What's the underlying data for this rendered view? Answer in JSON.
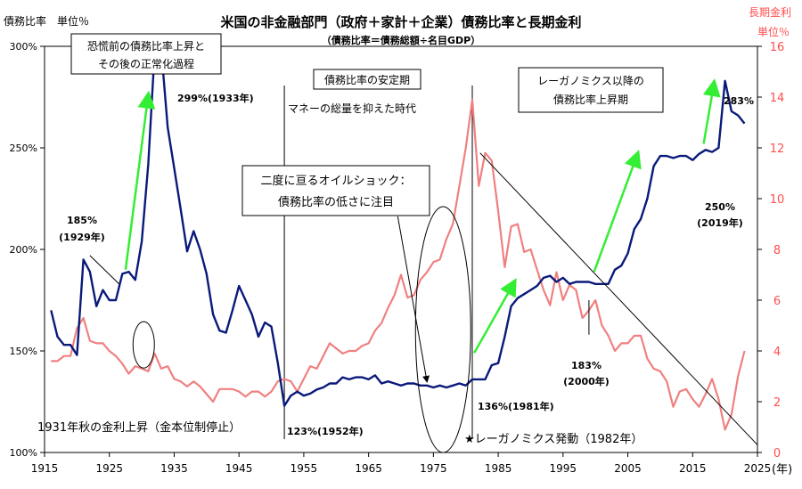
{
  "chart_data": {
    "type": "line",
    "title": "米国の非金融部門（政府＋家計＋企業）債務比率と長期金利",
    "subtitle": "（債務比率＝債務総額÷名目GDP）",
    "y_left_label": "債務比率　単位％",
    "y_right_label_1": "長期金利",
    "y_right_label_2": "単位％",
    "x_unit": "(年)",
    "xlim": [
      1915,
      2025
    ],
    "ylim_left": [
      100,
      300
    ],
    "ylim_right": [
      0,
      16
    ],
    "x_ticks": [
      "1915",
      "1925",
      "1935",
      "1945",
      "1955",
      "1965",
      "1975",
      "1985",
      "1995",
      "2005",
      "2015",
      "2025"
    ],
    "y_left_ticks": [
      "100%",
      "150%",
      "200%",
      "250%",
      "300%"
    ],
    "y_right_ticks": [
      "0",
      "2",
      "4",
      "6",
      "8",
      "10",
      "12",
      "14",
      "16"
    ],
    "grid": false,
    "series": [
      {
        "key": "debt",
        "color": "#0a1a7a",
        "axis": "left",
        "x": [
          1916,
          1917,
          1918,
          1919,
          1920,
          1921,
          1922,
          1923,
          1924,
          1925,
          1926,
          1927,
          1928,
          1929,
          1930,
          1931,
          1932,
          1933,
          1934,
          1935,
          1936,
          1937,
          1938,
          1939,
          1940,
          1941,
          1942,
          1943,
          1944,
          1945,
          1946,
          1947,
          1948,
          1949,
          1950,
          1951,
          1952,
          1953,
          1954,
          1955,
          1956,
          1957,
          1958,
          1959,
          1960,
          1961,
          1962,
          1963,
          1964,
          1965,
          1966,
          1967,
          1968,
          1969,
          1970,
          1971,
          1972,
          1973,
          1974,
          1975,
          1976,
          1977,
          1978,
          1979,
          1980,
          1981,
          1982,
          1983,
          1984,
          1985,
          1986,
          1987,
          1988,
          1989,
          1990,
          1991,
          1992,
          1993,
          1994,
          1995,
          1996,
          1997,
          1998,
          1999,
          2000,
          2001,
          2002,
          2003,
          2004,
          2005,
          2006,
          2007,
          2008,
          2009,
          2010,
          2011,
          2012,
          2013,
          2014,
          2015,
          2016,
          2017,
          2018,
          2019,
          2020,
          2021,
          2022,
          2023
        ],
        "y": [
          170,
          157,
          153,
          153,
          148,
          195,
          189,
          172,
          180,
          175,
          175,
          188,
          189,
          185,
          204,
          242,
          298,
          299,
          260,
          240,
          220,
          199,
          209,
          200,
          188,
          168,
          160,
          159,
          170,
          182,
          175,
          168,
          157,
          164,
          162,
          144,
          123,
          128,
          130,
          128,
          129,
          131,
          132,
          134,
          134,
          137,
          136,
          137,
          137,
          136,
          138,
          134,
          135,
          134,
          133,
          134,
          134,
          133,
          133,
          132,
          133,
          132,
          133,
          134,
          133,
          136,
          136,
          136,
          143,
          144,
          157,
          172,
          176,
          178,
          180,
          182,
          186,
          187,
          184,
          186,
          183,
          184,
          184,
          184,
          183,
          183,
          183,
          190,
          192,
          198,
          210,
          215,
          225,
          241,
          246,
          246,
          245,
          246,
          246,
          244,
          247,
          249,
          248,
          250,
          283,
          268,
          266,
          262
        ]
      },
      {
        "key": "rate",
        "color": "#f08080",
        "axis": "right",
        "x": [
          1916,
          1917,
          1918,
          1919,
          1920,
          1921,
          1922,
          1923,
          1924,
          1925,
          1926,
          1927,
          1928,
          1929,
          1930,
          1931,
          1932,
          1933,
          1934,
          1935,
          1936,
          1937,
          1938,
          1939,
          1940,
          1941,
          1942,
          1943,
          1944,
          1945,
          1946,
          1947,
          1948,
          1949,
          1950,
          1951,
          1952,
          1953,
          1954,
          1955,
          1956,
          1957,
          1958,
          1959,
          1960,
          1961,
          1962,
          1963,
          1964,
          1965,
          1966,
          1967,
          1968,
          1969,
          1970,
          1971,
          1972,
          1973,
          1974,
          1975,
          1976,
          1977,
          1978,
          1979,
          1980,
          1981,
          1982,
          1983,
          1984,
          1985,
          1986,
          1987,
          1988,
          1989,
          1990,
          1991,
          1992,
          1993,
          1994,
          1995,
          1996,
          1997,
          1998,
          1999,
          2000,
          2001,
          2002,
          2003,
          2004,
          2005,
          2006,
          2007,
          2008,
          2009,
          2010,
          2011,
          2012,
          2013,
          2014,
          2015,
          2016,
          2017,
          2018,
          2019,
          2020,
          2021,
          2022,
          2023
        ],
        "y": [
          3.6,
          3.6,
          3.8,
          3.8,
          4.9,
          5.3,
          4.4,
          4.3,
          4.3,
          4.0,
          3.8,
          3.5,
          3.1,
          3.4,
          3.3,
          3.2,
          3.9,
          3.3,
          3.4,
          2.9,
          2.8,
          2.6,
          2.8,
          2.6,
          2.3,
          2.0,
          2.5,
          2.5,
          2.5,
          2.4,
          2.2,
          2.4,
          2.4,
          2.2,
          2.4,
          2.8,
          2.9,
          2.8,
          2.4,
          2.9,
          3.4,
          3.3,
          3.8,
          4.3,
          4.1,
          3.9,
          4.0,
          4.0,
          4.2,
          4.3,
          4.8,
          5.1,
          5.7,
          6.2,
          7.0,
          6.1,
          6.2,
          6.8,
          7.1,
          7.5,
          7.6,
          8.4,
          9.0,
          10.5,
          12.0,
          13.9,
          10.5,
          11.8,
          11.5,
          9.5,
          7.3,
          8.9,
          9.0,
          7.9,
          8.0,
          7.2,
          6.4,
          5.8,
          7.1,
          6.0,
          6.6,
          6.4,
          5.3,
          5.6,
          6.0,
          5.0,
          4.6,
          4.0,
          4.3,
          4.3,
          4.6,
          4.6,
          3.7,
          3.3,
          3.2,
          2.8,
          1.8,
          2.4,
          2.5,
          2.1,
          1.8,
          2.3,
          2.9,
          2.1,
          0.9,
          1.5,
          3.0,
          4.0
        ]
      }
    ],
    "annotations": {
      "box_1": [
        "恐慌前の債務比率上昇と",
        "その後の正常化過程"
      ],
      "peak_1933": "299%(1933年)",
      "label_1929": [
        "185%",
        "(1929年)"
      ],
      "gold": "1931年秋の金利上昇（金本位制停止）",
      "box_stable": "債務比率の安定期",
      "money": "マネーの総量を抑えた時代",
      "box_oil": [
        "二度に亘るオイルショック：",
        "債務比率の低さに注目"
      ],
      "label_1952": "123%(1952年)",
      "label_1981": "136%(1981年)",
      "reagan_start": "★レーガノミクス発動（1982年）",
      "box_reagan": [
        "レーガノミクス以降の",
        "債務比率上昇期"
      ],
      "label_2000": [
        "183%",
        "(2000年)"
      ],
      "label_2019": [
        "250%",
        "(2019年)"
      ],
      "peak_2020": "283%"
    }
  }
}
